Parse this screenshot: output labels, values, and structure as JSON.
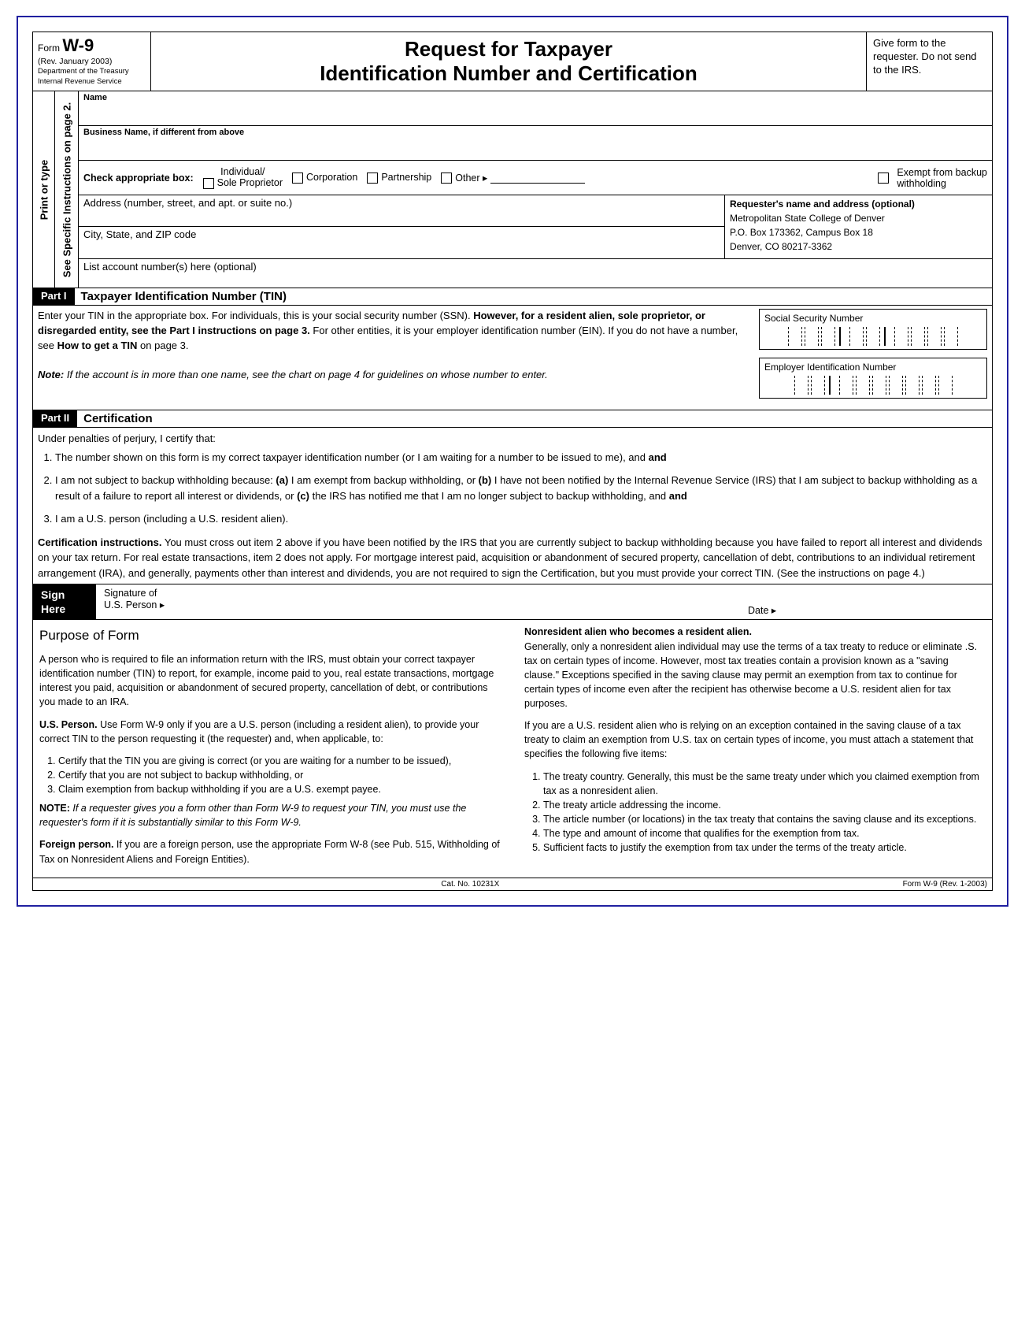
{
  "header": {
    "form_prefix": "Form",
    "form_name": "W-9",
    "revision": "(Rev. January 2003)",
    "dept1": "Department of the Treasury",
    "dept2": "Internal Revenue Service",
    "title_l1": "Request for Taxpayer",
    "title_l2": "Identification Number and Certification",
    "right_note": "Give form to the requester. Do not send to the IRS."
  },
  "side": {
    "outer": "Print or type",
    "inner": "See Specific Instructions on page 2."
  },
  "fields": {
    "name": "Name",
    "business": "Business Name, if different from above",
    "check_label": "Check appropriate box:",
    "indiv_top": "Individual/",
    "sole": "Sole Proprietor",
    "corp": "Corporation",
    "partner": "Partnership",
    "other": "Other ▸",
    "exempt1": "Exempt from backup",
    "exempt2": "withholding",
    "address": "Address (number, street, and apt. or suite no.)",
    "csz": "City, State, and ZIP code",
    "requester_hdr": "Requester's name and address (optional)",
    "req_l1": "Metropolitan State College of Denver",
    "req_l2": "P.O. Box 173362, Campus Box 18",
    "req_l3": "Denver, CO  80217-3362",
    "accounts": "List account number(s) here (optional)"
  },
  "part1": {
    "label": "Part I",
    "title": "Taxpayer Identification Number (TIN)",
    "p1a": "Enter your TIN in the appropriate box.  For individuals, this is your social security number (SSN). ",
    "p1b": "However, for a resident alien, sole proprietor, or disregarded entity, see the Part I instructions on page 3.",
    "p1c": "  For other entities, it is your employer identification number (EIN).  If you do not have a number, see ",
    "p1d": "How to get a TIN",
    "p1e": " on page 3.",
    "note_label": "Note:",
    "note": "  If the account is in more than one name, see the chart on page 4 for guidelines on whose number to enter.",
    "ssn": "Social Security Number",
    "ein": "Employer Identification Number"
  },
  "part2": {
    "label": "Part II",
    "title": "Certification",
    "intro": "Under penalties of perjury, I certify that:",
    "li1": "The number shown on this form is my correct taxpayer identification number (or I am waiting for a number to be issued to me), and",
    "li2a": "I am not subject to backup withholding because: ",
    "li2b": "(a)",
    "li2c": " I am exempt from backup withholding, or ",
    "li2d": "(b)",
    "li2e": " I have not been notified by the Internal Revenue Service (IRS) that I am subject to backup withholding as a result of a failure to report all interest or dividends, or ",
    "li2f": "(c)",
    "li2g": " the IRS has notified me that I am no longer subject to backup withholding, and",
    "li3": "I am a U.S. person (including a U.S. resident alien).",
    "cert_hdr": "Certification instructions.",
    "cert_body": "  You must cross out item 2 above if you have been notified by the IRS that you are currently subject to backup withholding because you have failed to report all interest and dividends on your tax return.  For real estate transactions, item 2 does not apply.  For mortgage interest paid, acquisition or abandonment of secured property, cancellation of debt, contributions to an individual retirement arrangement (IRA), and generally, payments other than interest and dividends, you are not required to sign the Certification, but you must provide your correct TIN.  (See the instructions on page 4.)"
  },
  "sign": {
    "l1": "Sign",
    "l2": "Here",
    "sig1": "Signature of",
    "sig2": "U.S. Person ▸",
    "date": "Date ▸"
  },
  "purpose": {
    "heading": "Purpose of Form",
    "p1": "A person who is required to file an information return with the IRS, must obtain your correct taxpayer identification number (TIN) to report, for example, income paid to you, real estate transactions, mortgage interest you paid, acquisition or abandonment of secured property, cancellation of debt, or contributions you made to an IRA.",
    "us_hdr": "U.S. Person.",
    "us_body": "  Use Form W-9 only if you are a U.S. person (including a resident alien), to provide your correct TIN to the person requesting it (the requester) and, when applicable, to:",
    "us_li1": "Certify that the TIN you are giving is correct (or you are waiting for a number to be issued),",
    "us_li2": "Certify that you are not subject to backup withholding, or",
    "us_li3": "Claim exemption from backup withholding if you are a U.S. exempt payee.",
    "note_hdr": "NOTE:",
    "note_body": "  If a requester gives you a form other than Form W-9 to request your TIN, you must use the requester's form if it is substantially similar to this Form W-9.",
    "fp_hdr": "Foreign person.",
    "fp_body": "  If you are a foreign person, use the appropriate Form W-8 (see Pub. 515, Withholding of Tax on Nonresident Aliens and Foreign Entities).",
    "nra_hdr": "Nonresident alien who becomes a resident alien.",
    "nra_p1": "Generally, only a nonresident alien individual may use the terms of a tax treaty to reduce or eliminate .S. tax on certain types of income.  However, most tax treaties contain a provision known as a \"saving clause.\"  Exceptions specified in the saving clause may permit an exemption from tax to continue for certain types of income even after the recipient has otherwise become a U.S. resident alien for tax purposes.",
    "nra_p2": "If you are a U.S. resident alien who is relying on an exception contained in the saving clause of a tax treaty to claim an exemption from U.S. tax on certain types of income, you must attach a statement that specifies the following five items:",
    "nra_li1": "The treaty country.  Generally, this must be the same treaty under which you claimed exemption from tax as a nonresident alien.",
    "nra_li2": "The treaty article addressing the income.",
    "nra_li3": "The article number (or locations) in the tax treaty that contains the saving clause and its exceptions.",
    "nra_li4": "The type and amount of income that qualifies for the exemption from tax.",
    "nra_li5": "Sufficient facts to justify the exemption from tax under the terms of the treaty article."
  },
  "footer": {
    "cat": "Cat. No. 10231X",
    "rev": "Form W-9 (Rev. 1-2003)"
  }
}
